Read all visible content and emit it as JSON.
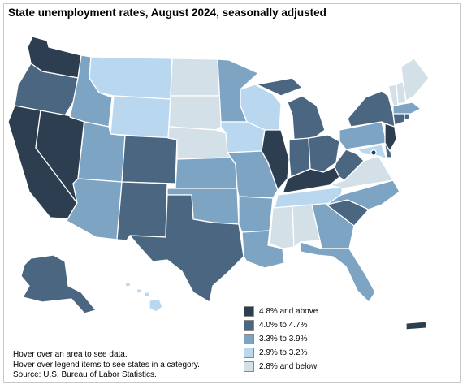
{
  "title": "State unemployment rates, August 2024, seasonally adjusted",
  "legend": [
    {
      "label": "4.8% and above",
      "color": "#2d3e50"
    },
    {
      "label": "4.0% to 4.7%",
      "color": "#4a6681"
    },
    {
      "label": "3.3% to 3.9%",
      "color": "#7da4c2"
    },
    {
      "label": "2.9% to 3.2%",
      "color": "#b9d8f0"
    },
    {
      "label": "2.8% and below",
      "color": "#d4e0e8"
    }
  ],
  "notes": {
    "line1": "Hover over an area to see data.",
    "line2": "Hover over legend items to see states in a category.",
    "source": "Source: U.S. Bureau of Labor Statistics."
  }
}
